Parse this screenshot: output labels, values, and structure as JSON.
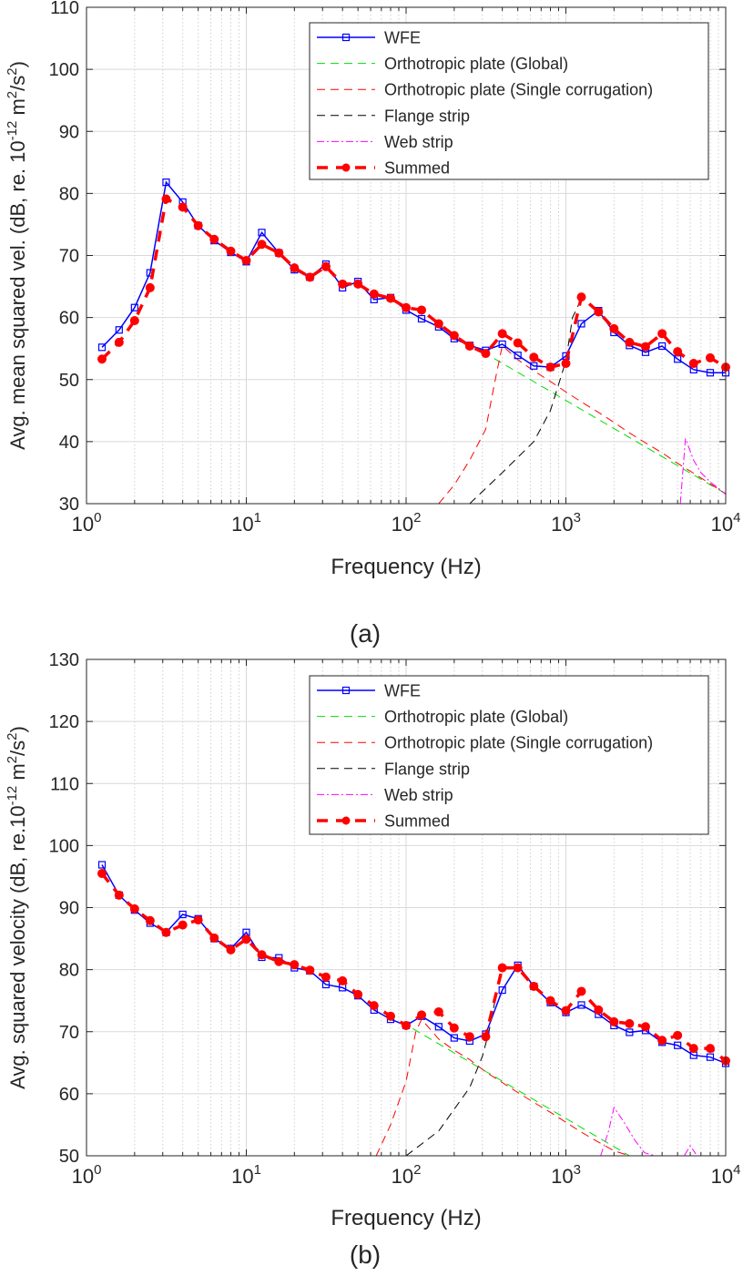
{
  "chart_data": [
    {
      "type": "line",
      "panel_label": "(a)",
      "xlabel": "Frequency (Hz)",
      "ylabel_main": "Avg. mean squared vel. (dB, re. 10",
      "ylabel_exp1": "-12",
      "ylabel_mid": " m",
      "ylabel_exp2": "2",
      "ylabel_end": "/s",
      "ylabel_exp3": "2",
      "ylabel_close": ")",
      "x_scale": "log",
      "xlim": [
        1,
        10000
      ],
      "ylim": [
        30,
        110
      ],
      "x_ticks": [
        1,
        10,
        100,
        1000,
        10000
      ],
      "x_tick_base": "10",
      "x_tick_exps": [
        "0",
        "1",
        "2",
        "3",
        "4"
      ],
      "y_ticks": [
        "30",
        "40",
        "50",
        "60",
        "70",
        "80",
        "90",
        "100",
        "110"
      ],
      "grid": true,
      "legend_position": "top-right",
      "series": [
        {
          "name": "WFE",
          "color": "#0000ff",
          "style": "solid",
          "marker": "square",
          "x": [
            1.25,
            1.6,
            2,
            2.5,
            3.15,
            4,
            5,
            6.3,
            8,
            10,
            12.5,
            16,
            20,
            25,
            31.5,
            40,
            50,
            63,
            80,
            100,
            125,
            160,
            200,
            250,
            315,
            400,
            500,
            630,
            800,
            1000,
            1250,
            1600,
            2000,
            2500,
            3150,
            4000,
            5000,
            6300,
            8000,
            10000
          ],
          "y": [
            55.2,
            58.0,
            61.6,
            67.2,
            81.8,
            78.6,
            74.8,
            72.4,
            70.5,
            69.0,
            73.7,
            70.4,
            67.7,
            66.5,
            68.6,
            64.8,
            65.8,
            62.9,
            63.2,
            61.2,
            59.8,
            58.5,
            56.6,
            55.5,
            54.7,
            55.7,
            53.9,
            52.2,
            52.0,
            53.8,
            59.0,
            61.1,
            57.6,
            55.5,
            54.4,
            55.4,
            53.3,
            51.6,
            51.1,
            51.1
          ]
        },
        {
          "name": "Orthotropic plate (Global)",
          "color": "#00dd00",
          "style": "dashed",
          "marker": "none",
          "x": [
            300,
            10000
          ],
          "y": [
            54.5,
            31.6
          ]
        },
        {
          "name": "Orthotropic plate (Single corrugation)",
          "color": "#ff0000",
          "style": "dashed",
          "marker": "none",
          "x": [
            160,
            200,
            250,
            315,
            355,
            400,
            500,
            630,
            800,
            1000,
            1250,
            1600,
            2000,
            2500,
            3150,
            4000,
            5000,
            6300,
            8000,
            10000
          ],
          "y": [
            30,
            33,
            37,
            42,
            49,
            55.5,
            53.2,
            51.4,
            49.7,
            48.0,
            46.4,
            44.7,
            43.1,
            41.4,
            39.8,
            38.2,
            36.5,
            34.9,
            33.2,
            31.6
          ]
        },
        {
          "name": "Flange strip",
          "color": "#000000",
          "style": "dashed",
          "marker": "none",
          "x": [
            250,
            400,
            630,
            800,
            1000,
            1100,
            1250
          ],
          "y": [
            30,
            35,
            40,
            45,
            53,
            60,
            63
          ]
        },
        {
          "name": "Web strip",
          "color": "#ff00ff",
          "style": "dashdot",
          "marker": "none",
          "x": [
            5200,
            5600,
            6300,
            7000,
            8000,
            9000,
            10000
          ],
          "y": [
            30,
            40.5,
            37,
            35,
            33.5,
            32.5,
            31.5
          ]
        },
        {
          "name": "Summed",
          "color": "#ff0000",
          "style": "bold-dashed",
          "marker": "circle",
          "x": [
            1.25,
            1.6,
            2,
            2.5,
            3.15,
            4,
            5,
            6.3,
            8,
            10,
            12.5,
            16,
            20,
            25,
            31.5,
            40,
            50,
            63,
            80,
            100,
            125,
            160,
            200,
            250,
            315,
            400,
            500,
            630,
            800,
            1000,
            1250,
            1600,
            2000,
            2500,
            3150,
            4000,
            5000,
            6300,
            8000,
            10000
          ],
          "y": [
            53.3,
            56.0,
            59.5,
            64.8,
            79.1,
            77.8,
            74.8,
            72.6,
            70.7,
            69.2,
            71.8,
            70.4,
            68.0,
            66.5,
            68.2,
            65.4,
            65.4,
            63.8,
            63.1,
            61.6,
            61.2,
            59.0,
            57.1,
            55.4,
            54.2,
            57.4,
            55.9,
            53.6,
            52.0,
            52.6,
            63.3,
            60.9,
            58.2,
            56.0,
            55.3,
            57.4,
            54.5,
            52.6,
            53.5,
            52.0
          ]
        }
      ]
    },
    {
      "type": "line",
      "panel_label": "(b)",
      "xlabel": "Frequency (Hz)",
      "ylabel_main": "Avg. squared velocity (dB, re.10",
      "ylabel_exp1": "-12",
      "ylabel_mid": " m",
      "ylabel_exp2": "2",
      "ylabel_end": "/s",
      "ylabel_exp3": "2",
      "ylabel_close": ")",
      "x_scale": "log",
      "xlim": [
        1,
        10000
      ],
      "ylim": [
        50,
        130
      ],
      "x_ticks": [
        1,
        10,
        100,
        1000,
        10000
      ],
      "x_tick_base": "10",
      "x_tick_exps": [
        "0",
        "1",
        "2",
        "3",
        "4"
      ],
      "y_ticks": [
        "50",
        "60",
        "70",
        "80",
        "90",
        "100",
        "110",
        "120",
        "130"
      ],
      "grid": true,
      "legend_position": "top-right",
      "series": [
        {
          "name": "WFE",
          "color": "#0000ff",
          "style": "solid",
          "marker": "square",
          "x": [
            1.25,
            1.6,
            2,
            2.5,
            3.15,
            4,
            5,
            6.3,
            8,
            10,
            12.5,
            16,
            20,
            25,
            31.5,
            40,
            50,
            63,
            80,
            100,
            125,
            160,
            200,
            250,
            315,
            400,
            500,
            630,
            800,
            1000,
            1250,
            1600,
            2000,
            2500,
            3150,
            4000,
            5000,
            6300,
            8000,
            10000
          ],
          "y": [
            96.9,
            92.0,
            89.6,
            87.5,
            86.0,
            88.9,
            88.2,
            85.0,
            83.4,
            86.0,
            82.0,
            81.9,
            80.3,
            79.8,
            77.6,
            77.1,
            75.8,
            73.5,
            72.0,
            71.0,
            72.5,
            70.8,
            69.0,
            68.5,
            69.6,
            76.7,
            80.7,
            77.3,
            74.7,
            73.1,
            74.3,
            72.8,
            71.0,
            69.9,
            70.2,
            68.3,
            67.8,
            66.2,
            65.9,
            64.9
          ]
        },
        {
          "name": "Orthotropic plate (Global)",
          "color": "#00dd00",
          "style": "dashed",
          "marker": "none",
          "x": [
            110,
            2500
          ],
          "y": [
            70.5,
            50
          ]
        },
        {
          "name": "Orthotropic plate (Single corrugation)",
          "color": "#ff0000",
          "style": "dashed",
          "marker": "none",
          "x": [
            65,
            80,
            100,
            115,
            125,
            160,
            200,
            250,
            315,
            400,
            500,
            630,
            800,
            1000,
            1250,
            1600,
            2000,
            2500
          ],
          "y": [
            50,
            55,
            62,
            70,
            72,
            68.8,
            67.0,
            65.5,
            63.5,
            61.8,
            60.2,
            58.6,
            57.0,
            55.4,
            53.8,
            52.2,
            50.8,
            50
          ]
        },
        {
          "name": "Flange strip",
          "color": "#000000",
          "style": "dashed",
          "marker": "none",
          "x": [
            100,
            160,
            250,
            300,
            330,
            360
          ],
          "y": [
            50,
            54,
            61,
            66,
            70,
            75
          ]
        },
        {
          "name": "Web strip",
          "color": "#ff00ff",
          "style": "dashdot",
          "marker": "none",
          "x": [
            1650,
            1850,
            2000,
            2300,
            2700,
            3100,
            3600,
            5500,
            6000,
            6500
          ],
          "y": [
            50,
            54,
            57.8,
            55.5,
            52.5,
            50.5,
            50,
            50,
            51.6,
            50.3
          ]
        },
        {
          "name": "Summed",
          "color": "#ff0000",
          "style": "bold-dashed",
          "marker": "circle",
          "x": [
            1.25,
            1.6,
            2,
            2.5,
            3.15,
            4,
            5,
            6.3,
            8,
            10,
            12.5,
            16,
            20,
            25,
            31.5,
            40,
            50,
            63,
            80,
            100,
            125,
            160,
            200,
            250,
            315,
            400,
            500,
            630,
            800,
            1000,
            1250,
            1600,
            2000,
            2500,
            3150,
            4000,
            5000,
            6300,
            8000,
            10000
          ],
          "y": [
            95.5,
            92.0,
            89.8,
            87.9,
            86.0,
            87.2,
            88.0,
            85.1,
            83.2,
            84.9,
            82.4,
            81.3,
            80.8,
            79.9,
            78.8,
            78.2,
            76.0,
            74.2,
            72.5,
            71.0,
            72.7,
            73.2,
            70.6,
            69.2,
            69.2,
            80.3,
            80.3,
            77.3,
            75.0,
            73.4,
            76.5,
            73.5,
            71.6,
            71.3,
            70.8,
            68.6,
            69.4,
            67.3,
            67.3,
            65.3
          ]
        }
      ]
    }
  ]
}
